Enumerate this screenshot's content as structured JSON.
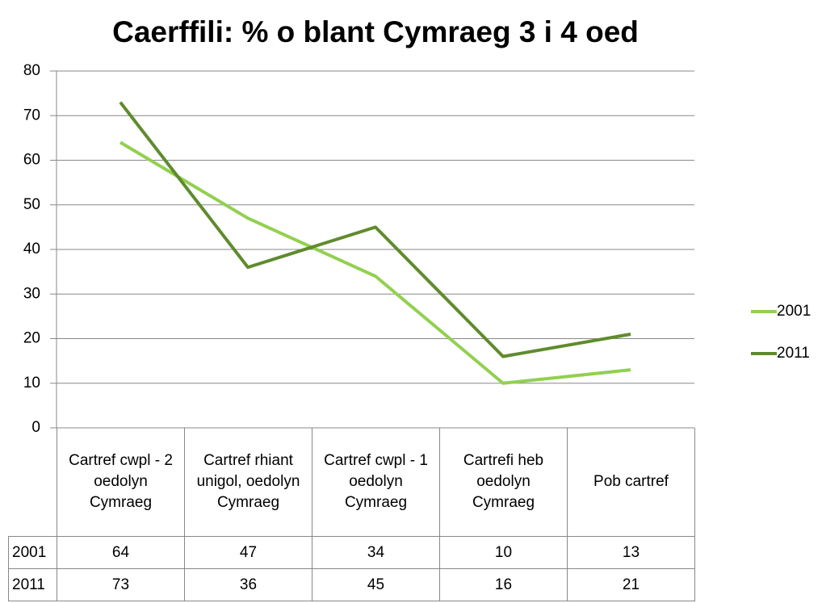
{
  "chart_data": {
    "type": "line",
    "title": "Caerffili: % o blant Cymraeg 3 i 4 oed",
    "categories": [
      "Cartref cwpl - 2 oedolyn Cymraeg",
      "Cartref rhiant unigol, oedolyn Cymraeg",
      "Cartref cwpl - 1 oedolyn Cymraeg",
      "Cartrefi heb oedolyn Cymraeg",
      "Pob cartref"
    ],
    "series": [
      {
        "name": "2001",
        "color": "#92d050",
        "values": [
          64,
          47,
          34,
          10,
          13
        ]
      },
      {
        "name": "2011",
        "color": "#5f8b2d",
        "values": [
          73,
          36,
          45,
          16,
          21
        ]
      }
    ],
    "ylim": [
      0,
      80
    ],
    "yticks": [
      0,
      10,
      20,
      30,
      40,
      50,
      60,
      70,
      80
    ],
    "grid": true,
    "legend": "right"
  }
}
